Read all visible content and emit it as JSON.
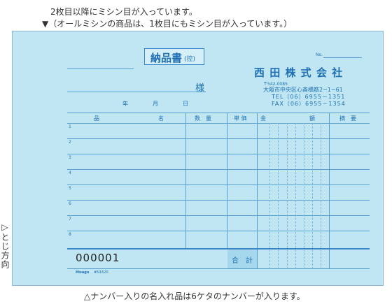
{
  "notes": {
    "top_line1": "2枚目以降にミシン目が入っています。",
    "top_line2": "▼（オールミシンの商品は、1枚目にもミシン目が入っています。）",
    "bottom": "△ナンバー入りの名入れ品は6ケタのナンバーが入ります。",
    "side": "▷とじ方向"
  },
  "form": {
    "title": "納品書",
    "title_sub": "(控)",
    "no_label": "No.",
    "sama": "様",
    "date": {
      "year": "年",
      "month": "月",
      "day": "日"
    },
    "company": {
      "name": "西 田 株 式 会 社",
      "postal": "〒542-0085",
      "address": "大阪市中央区心斎橋筋2−1−61",
      "tel": "TEL（06）6955－1351",
      "fax": "FAX（06）6955－1354"
    },
    "columns": {
      "item": "品",
      "name": "名",
      "qty": "数　量",
      "price": "単 価",
      "amount_l": "金",
      "amount_r": "額",
      "remarks": "摘　要"
    },
    "rows": [
      "1",
      "2",
      "3",
      "4",
      "5",
      "6",
      "7",
      "8"
    ],
    "total_label": "合　計",
    "serial": "000001",
    "brand": "Hisago",
    "code": "#N1620"
  }
}
